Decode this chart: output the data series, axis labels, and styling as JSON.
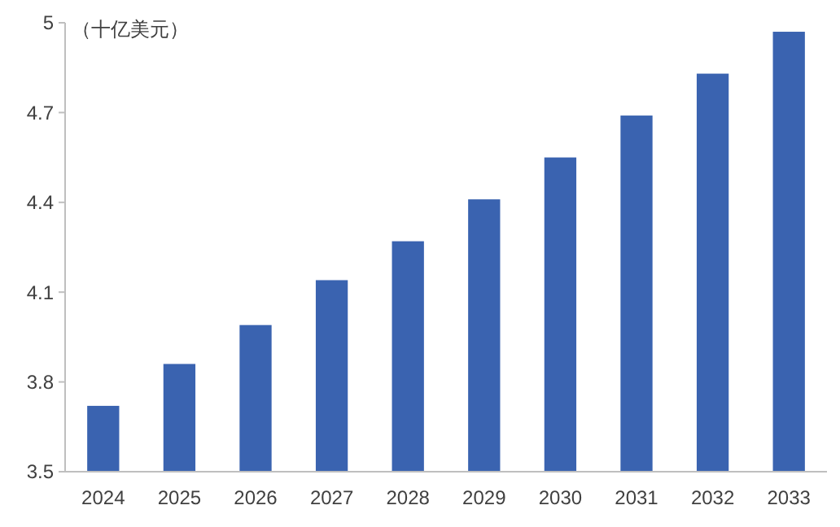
{
  "chart_data": {
    "type": "bar",
    "ylabel": "（十亿美元）",
    "categories": [
      "2024",
      "2025",
      "2026",
      "2027",
      "2028",
      "2029",
      "2030",
      "2031",
      "2032",
      "2033"
    ],
    "values": [
      3.72,
      3.86,
      3.99,
      4.14,
      4.27,
      4.41,
      4.55,
      4.69,
      4.83,
      4.97
    ],
    "color": "#3a63b0",
    "ylim": [
      3.5,
      5
    ],
    "yticks": [
      3.5,
      3.8,
      4.1,
      4.4,
      4.7,
      5
    ],
    "grid": false
  }
}
